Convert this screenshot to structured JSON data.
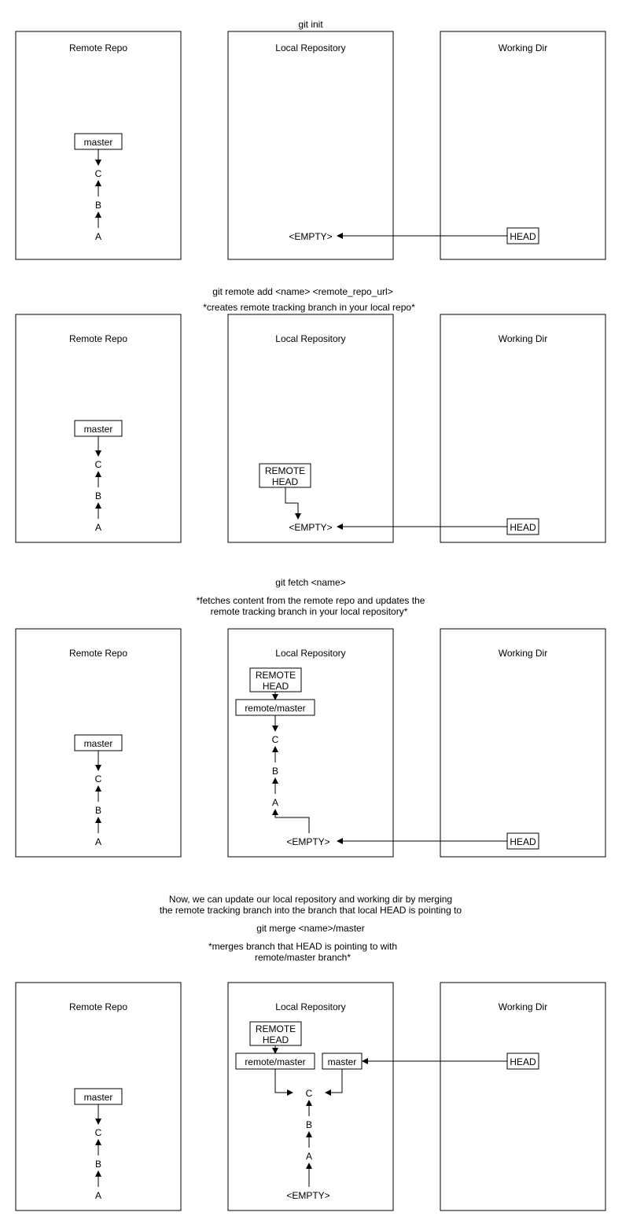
{
  "labels": {
    "remote_repo": "Remote Repo",
    "local_repo": "Local Repository",
    "working_dir": "Working Dir",
    "master": "master",
    "remote_master": "remote/master",
    "remote_head_1": "REMOTE",
    "remote_head_2": "HEAD",
    "head": "HEAD",
    "empty": "<EMPTY>",
    "commit_a": "A",
    "commit_b": "B",
    "commit_c": "C"
  },
  "stages": {
    "s1": {
      "title": "git init"
    },
    "s2": {
      "title": "git remote add <name> <remote_repo_url>",
      "note": "*creates remote tracking branch in your local repo*"
    },
    "s3": {
      "title": "git fetch <name>",
      "note_line1": "*fetches content from the remote repo and updates the",
      "note_line2": "remote tracking branch in your local repository*"
    },
    "s4": {
      "intro_line1": "Now, we can update our local repository and working dir by merging",
      "intro_line2": "the remote tracking branch into the branch that local HEAD is pointing to",
      "title": "git merge <name>/master",
      "note_line1": "*merges branch that HEAD is pointing to with",
      "note_line2": "remote/master branch*"
    }
  }
}
